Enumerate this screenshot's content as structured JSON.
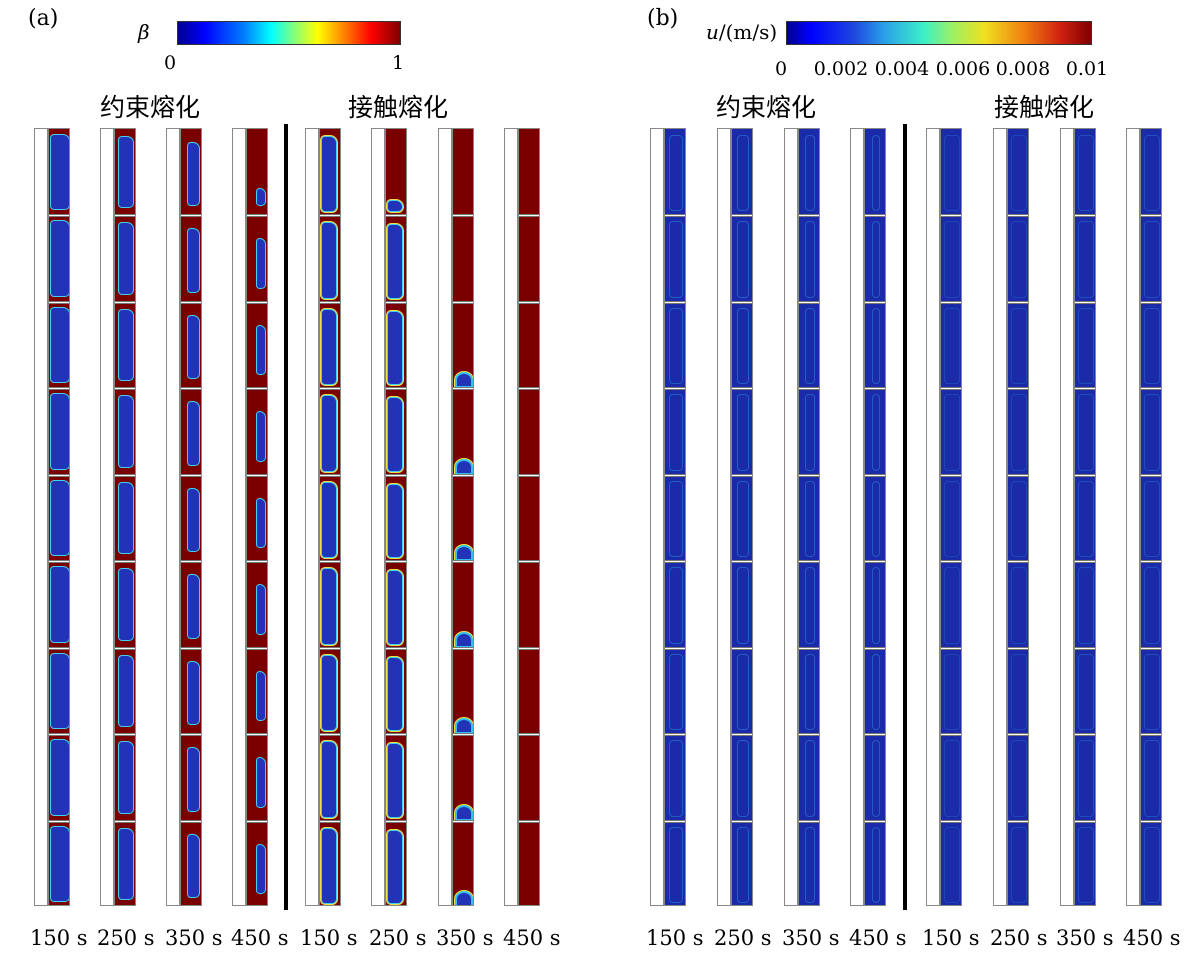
{
  "panel_a": {
    "label": "(a)",
    "colorbar": {
      "var": "β",
      "min": "0",
      "max": "1"
    },
    "groups": [
      "约束熔化",
      "接触熔化"
    ],
    "times": [
      "150 s",
      "250 s",
      "350 s",
      "450 s",
      "150 s",
      "250 s",
      "350 s",
      "450 s"
    ]
  },
  "panel_b": {
    "label": "(b)",
    "colorbar": {
      "var": "u",
      "unit": "/(m/s)",
      "ticks": [
        "0",
        "0.002",
        "0.004",
        "0.006",
        "0.008",
        "0.01"
      ]
    },
    "groups": [
      "约束熔化",
      "接触熔化"
    ],
    "times": [
      "150 s",
      "250 s",
      "350 s",
      "450 s",
      "150 s",
      "250 s",
      "350 s",
      "450 s"
    ]
  },
  "colors": {
    "solid": "#2233b8",
    "liquid": "#7a0000",
    "velocity_bg": "#1a2aa8",
    "velocity_hot": "#30c0f0"
  }
}
